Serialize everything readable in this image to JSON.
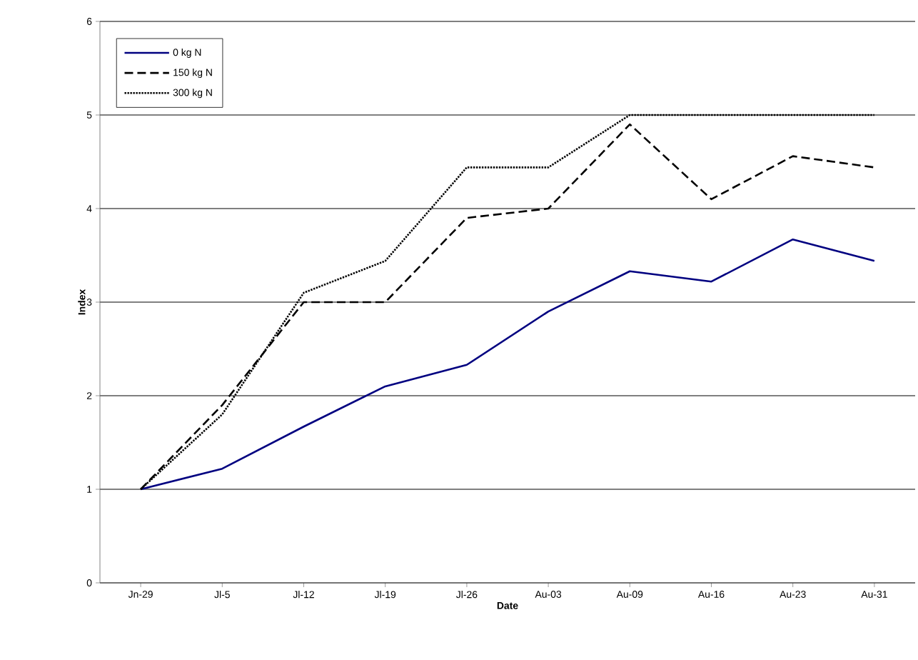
{
  "chart_data": {
    "type": "line",
    "xlabel": "Date",
    "ylabel": "Index",
    "categories": [
      "Jn-29",
      "Jl-5",
      "Jl-12",
      "Jl-19",
      "Jl-26",
      "Au-03",
      "Au-09",
      "Au-16",
      "Au-23",
      "Au-31"
    ],
    "series": [
      {
        "name": "0 kg N",
        "color": "#000080",
        "line_style": "solid",
        "values": [
          1.0,
          1.22,
          1.67,
          2.1,
          2.33,
          2.9,
          3.33,
          3.22,
          3.67,
          3.44
        ]
      },
      {
        "name": "150 kg N",
        "color": "#000000",
        "line_style": "dashed",
        "values": [
          1.0,
          1.9,
          3.0,
          3.0,
          3.9,
          4.0,
          4.9,
          4.1,
          4.56,
          4.44
        ]
      },
      {
        "name": "300 kg N",
        "color": "#000000",
        "line_style": "dotted",
        "values": [
          1.0,
          1.8,
          3.1,
          3.44,
          4.44,
          4.44,
          5.0,
          5.0,
          5.0,
          5.0
        ]
      }
    ],
    "ylim": [
      0,
      6
    ],
    "yticks": [
      0,
      1,
      2,
      3,
      4,
      5,
      6
    ],
    "grid": "y",
    "legend": "top left",
    "marker": "none"
  }
}
